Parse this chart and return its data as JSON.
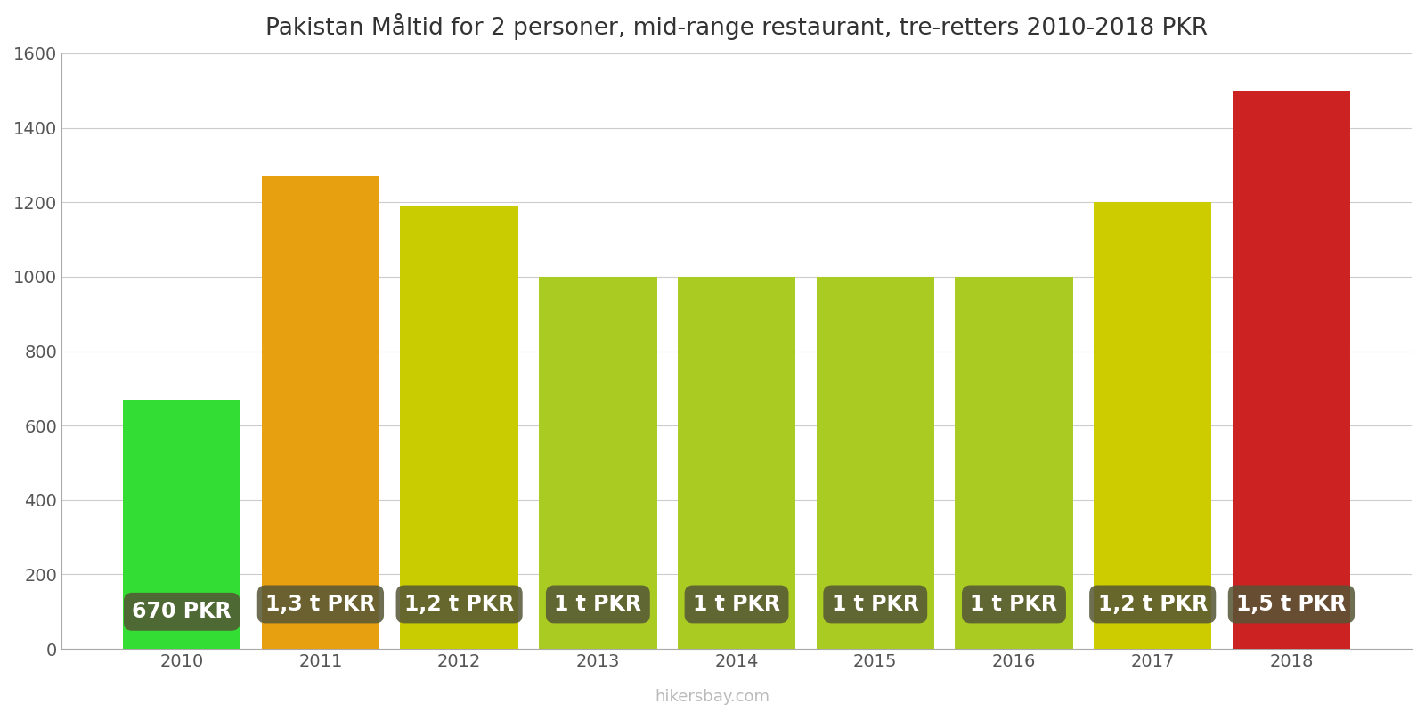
{
  "title": "Pakistan Måltid for 2 personer, mid-range restaurant, tre-retters 2010-2018 PKR",
  "years": [
    2010,
    2011,
    2012,
    2013,
    2014,
    2015,
    2016,
    2017,
    2018
  ],
  "values": [
    670,
    1270,
    1190,
    1000,
    1000,
    1000,
    1000,
    1200,
    1500
  ],
  "bar_colors": [
    "#33dd33",
    "#e6a010",
    "#c8cc00",
    "#aacc22",
    "#aacc22",
    "#aacc22",
    "#aacc22",
    "#cccc00",
    "#cc2222"
  ],
  "labels": [
    "670 PKR",
    "1,3 t PKR",
    "1,2 t PKR",
    "1 t PKR",
    "1 t PKR",
    "1 t PKR",
    "1 t PKR",
    "1,2 t PKR",
    "1,5 t PKR"
  ],
  "label_bg_color": "#555535",
  "label_text_color": "#ffffff",
  "ylim": [
    0,
    1600
  ],
  "yticks": [
    0,
    200,
    400,
    600,
    800,
    1000,
    1200,
    1400,
    1600
  ],
  "watermark": "hikersbay.com",
  "title_fontsize": 19,
  "label_fontsize": 17,
  "tick_fontsize": 14,
  "bg_color": "#ffffff",
  "grid_color": "#cccccc",
  "bar_width": 0.85
}
